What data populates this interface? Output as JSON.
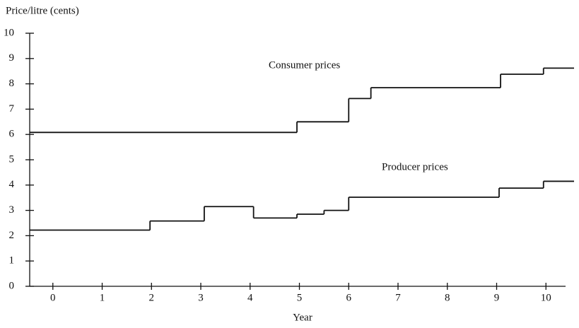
{
  "chart_data": {
    "type": "step",
    "y_label": "Price/litre (cents)",
    "x_label": "Year",
    "xlim": [
      -0.47,
      10.57
    ],
    "xticks": [
      0,
      1,
      2,
      3,
      4,
      5,
      6,
      7,
      8,
      9,
      10
    ],
    "ylim": [
      0,
      10
    ],
    "yticks": [
      0,
      1,
      2,
      3,
      4,
      5,
      6,
      7,
      8,
      9,
      10
    ],
    "annotations": [
      "Consumer prices",
      "Producer prices"
    ],
    "series": [
      {
        "name": "Consumer prices",
        "color": "#111111",
        "x": [
          -0.47,
          4.95,
          6.0,
          6.45,
          9.08,
          9.95
        ],
        "values": [
          6.08,
          6.5,
          7.42,
          7.85,
          8.38,
          8.62
        ]
      },
      {
        "name": "Producer prices",
        "color": "#111111",
        "x": [
          -0.47,
          1.97,
          3.07,
          4.07,
          4.95,
          5.5,
          6.0,
          9.05,
          9.95
        ],
        "values": [
          2.22,
          2.58,
          3.15,
          2.7,
          2.85,
          3.0,
          3.52,
          3.88,
          4.15
        ]
      }
    ]
  }
}
